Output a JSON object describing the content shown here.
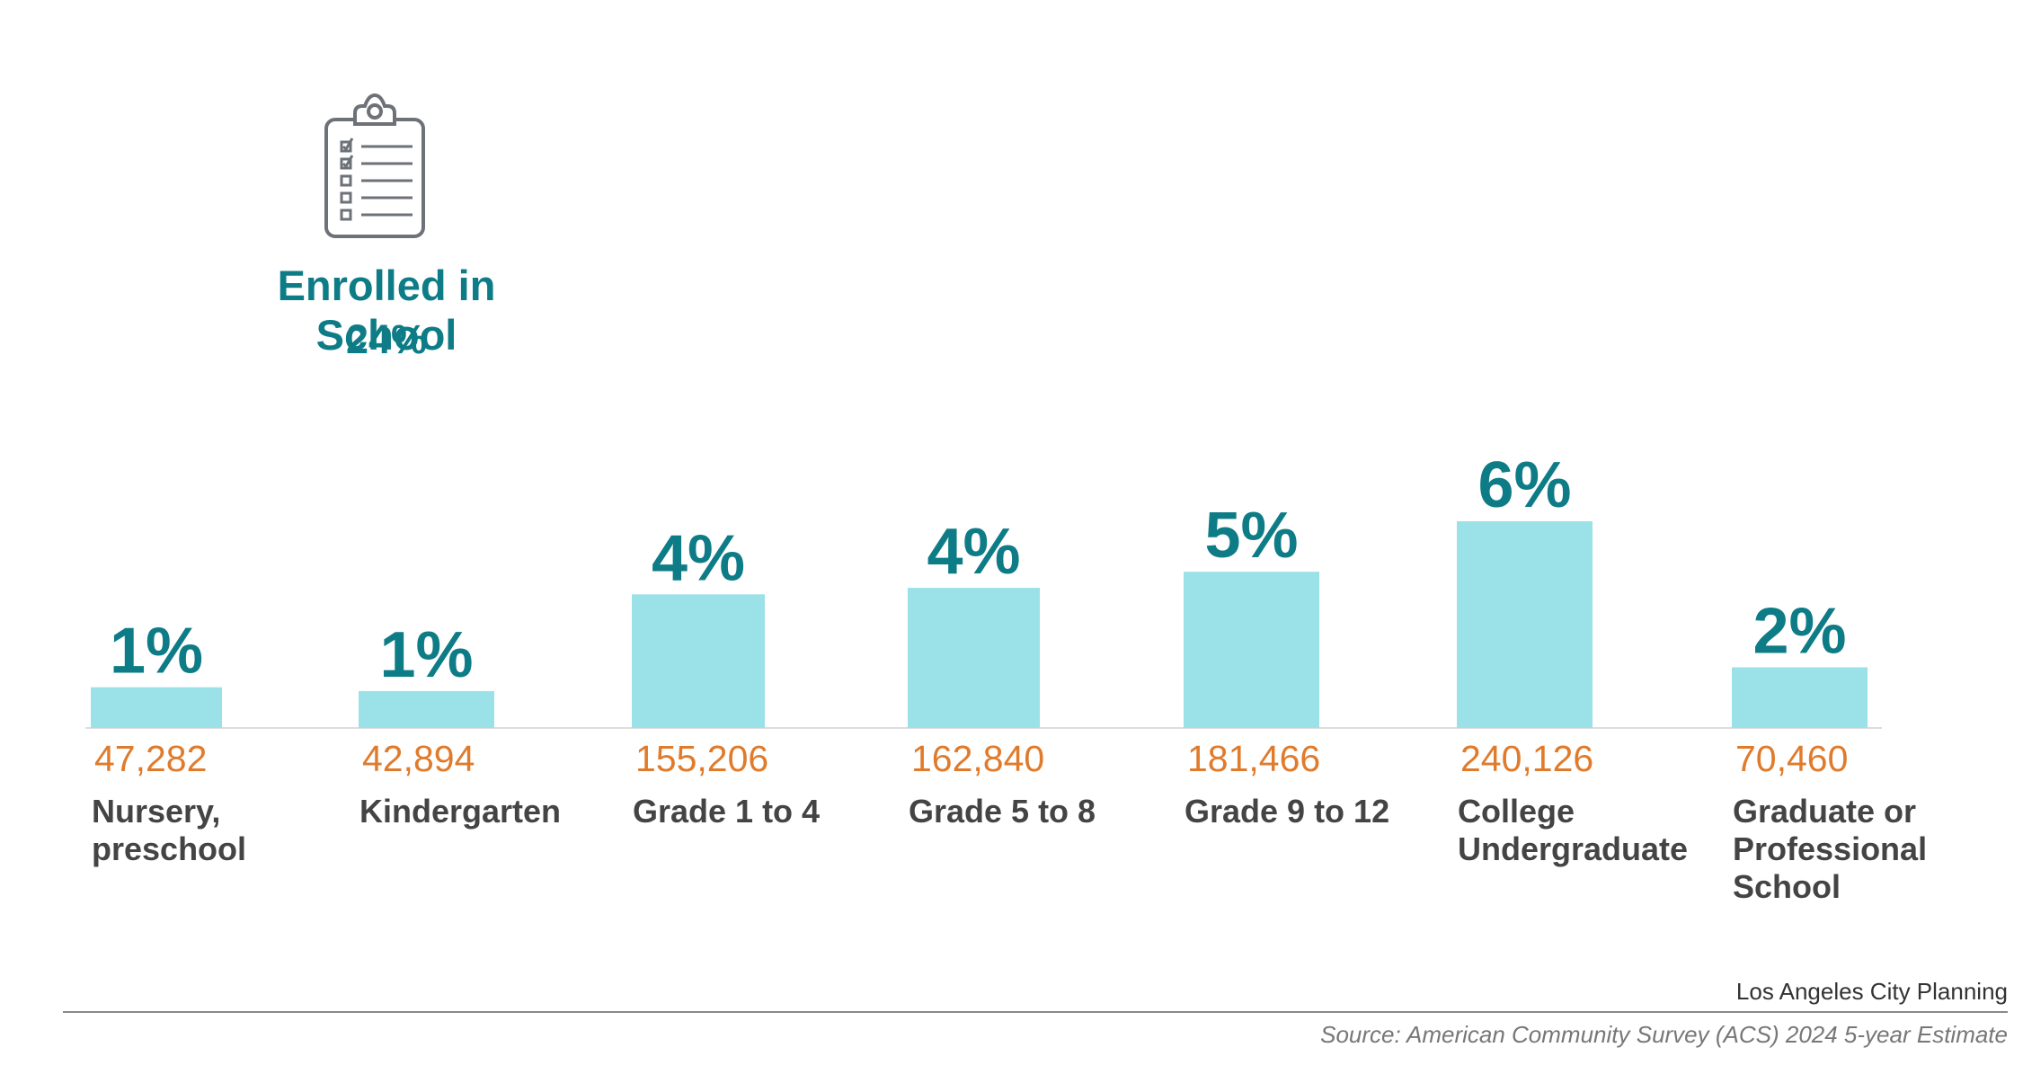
{
  "headline": {
    "title": "Enrolled in School",
    "value": "24%",
    "icon": "clipboard-checklist-icon"
  },
  "colors": {
    "bar": "#9be1e8",
    "percent_label": "#0e7c86",
    "count_label": "#e07b2c",
    "category_label": "#444444",
    "baseline": "#dddddd"
  },
  "chart_data": {
    "type": "bar",
    "categories": [
      [
        "Nursery,",
        "preschool"
      ],
      [
        "Kindergarten"
      ],
      [
        "Grade 1 to 4"
      ],
      [
        "Grade 5 to 8"
      ],
      [
        "Grade 9 to 12"
      ],
      [
        "College",
        "Undergraduate"
      ],
      [
        "Graduate or",
        "Professional",
        "School"
      ]
    ],
    "values": [
      47282,
      42894,
      155206,
      162840,
      181466,
      240126,
      70460
    ],
    "value_labels": [
      "47,282",
      "42,894",
      "155,206",
      "162,840",
      "181,466",
      "240,126",
      "70,460"
    ],
    "percent_labels": [
      "1%",
      "1%",
      "4%",
      "4%",
      "5%",
      "6%",
      "2%"
    ],
    "ylim": [
      0,
      240126
    ],
    "grid": false,
    "legend": "none"
  },
  "footer": {
    "credit": "Los Angeles City Planning",
    "source": "Source: American Community Survey (ACS) 2024 5-year Estimate"
  }
}
